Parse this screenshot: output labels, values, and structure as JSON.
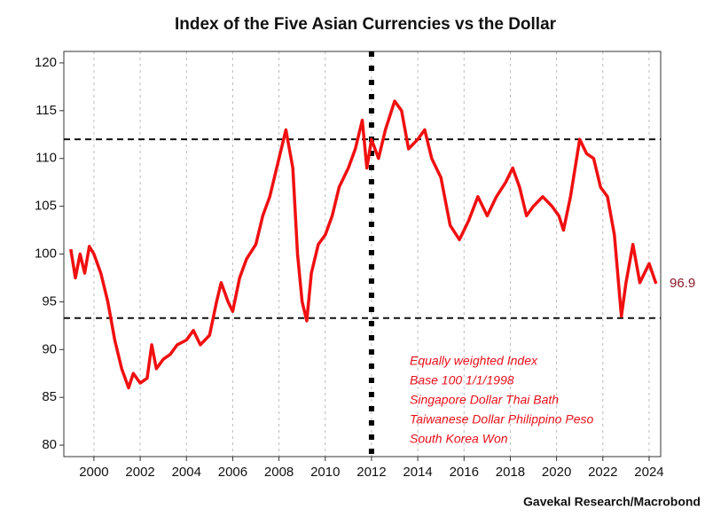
{
  "chart_data": {
    "type": "line",
    "title": "Index of the Five Asian Currencies vs the Dollar",
    "x": [
      1999.0,
      1999.2,
      1999.4,
      1999.6,
      1999.8,
      2000.0,
      2000.3,
      2000.6,
      2000.9,
      2001.2,
      2001.5,
      2001.7,
      2002.0,
      2002.3,
      2002.5,
      2002.7,
      2003.0,
      2003.3,
      2003.6,
      2004.0,
      2004.3,
      2004.6,
      2005.0,
      2005.3,
      2005.5,
      2005.8,
      2006.0,
      2006.3,
      2006.6,
      2007.0,
      2007.3,
      2007.6,
      2008.0,
      2008.3,
      2008.6,
      2008.8,
      2009.0,
      2009.2,
      2009.4,
      2009.7,
      2010.0,
      2010.3,
      2010.6,
      2011.0,
      2011.3,
      2011.6,
      2011.8,
      2012.0,
      2012.3,
      2012.6,
      2013.0,
      2013.3,
      2013.6,
      2014.0,
      2014.3,
      2014.6,
      2015.0,
      2015.4,
      2015.8,
      2016.2,
      2016.6,
      2017.0,
      2017.4,
      2017.8,
      2018.1,
      2018.4,
      2018.7,
      2019.0,
      2019.4,
      2019.8,
      2020.1,
      2020.3,
      2020.6,
      2021.0,
      2021.3,
      2021.6,
      2021.9,
      2022.2,
      2022.5,
      2022.8,
      2023.0,
      2023.3,
      2023.6,
      2024.0,
      2024.3
    ],
    "series": [
      {
        "name": "Index",
        "color": "#f01010",
        "values": [
          100.5,
          97.5,
          100,
          98,
          100.8,
          100,
          98,
          95,
          91,
          88,
          86,
          87.5,
          86.5,
          87,
          90.5,
          88,
          89,
          89.5,
          90.5,
          91,
          92,
          90.5,
          91.5,
          95,
          97,
          95,
          94,
          97.5,
          99.5,
          101,
          104,
          106,
          110,
          113,
          109,
          100,
          95,
          93,
          98,
          101,
          102,
          104,
          107,
          109,
          111,
          114,
          109,
          112,
          110,
          113,
          116,
          115,
          111,
          112,
          113,
          110,
          108,
          103,
          101.5,
          103.5,
          106,
          104,
          106,
          107.5,
          109,
          107,
          104,
          105,
          106,
          105,
          104,
          102.5,
          106,
          112,
          110.5,
          110,
          107,
          106,
          102,
          93.5,
          97,
          101,
          97,
          99,
          96.9
        ]
      }
    ],
    "xlim": [
      1998.7,
      2024.5
    ],
    "xticks": [
      2000,
      2002,
      2004,
      2006,
      2008,
      2010,
      2012,
      2014,
      2016,
      2018,
      2020,
      2022,
      2024
    ],
    "ylim": [
      78.8,
      121.2
    ],
    "yticks": [
      80,
      85,
      90,
      95,
      100,
      105,
      110,
      115,
      120
    ],
    "grid": true,
    "hlines": [
      112,
      93.3
    ],
    "vlines": [
      2012
    ],
    "end_label": "96.9",
    "annotation": [
      "Equally weighted Index",
      "Base 100 1/1/1998",
      "Singapore Dollar Thai Bath",
      "Taiwanese Dollar Philippino Peso",
      "South Korea Won"
    ],
    "source": "Gavekal Research/Macrobond"
  }
}
